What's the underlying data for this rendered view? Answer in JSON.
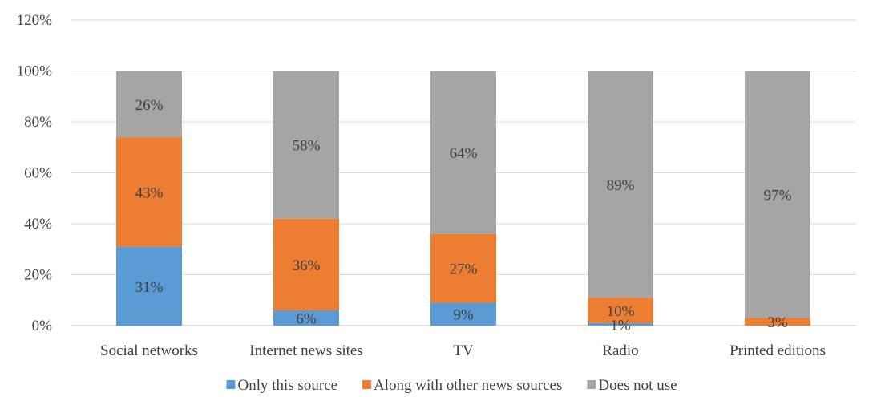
{
  "chart_data": {
    "type": "bar",
    "stacked": true,
    "categories": [
      "Social networks",
      "Internet news sites",
      "TV",
      "Radio",
      "Printed editions"
    ],
    "series": [
      {
        "name": "Only this source",
        "color": "#5b9bd5",
        "values": [
          31,
          6,
          9,
          1,
          0
        ],
        "labels": [
          "31%",
          "6%",
          "9%",
          "1%",
          ""
        ]
      },
      {
        "name": "Along with other news sources",
        "color": "#ed7d31",
        "values": [
          43,
          36,
          27,
          10,
          3
        ],
        "labels": [
          "43%",
          "36%",
          "27%",
          "10%",
          "3%"
        ]
      },
      {
        "name": "Does not use",
        "color": "#a5a5a5",
        "values": [
          26,
          58,
          64,
          89,
          97
        ],
        "labels": [
          "26%",
          "58%",
          "64%",
          "89%",
          "97%"
        ]
      }
    ],
    "y_ticks": [
      "0%",
      "20%",
      "40%",
      "60%",
      "80%",
      "100%",
      "120%"
    ],
    "y_tick_values": [
      0,
      20,
      40,
      60,
      80,
      100,
      120
    ],
    "ylim": [
      0,
      120
    ],
    "grid": true,
    "legend_position": "bottom"
  }
}
